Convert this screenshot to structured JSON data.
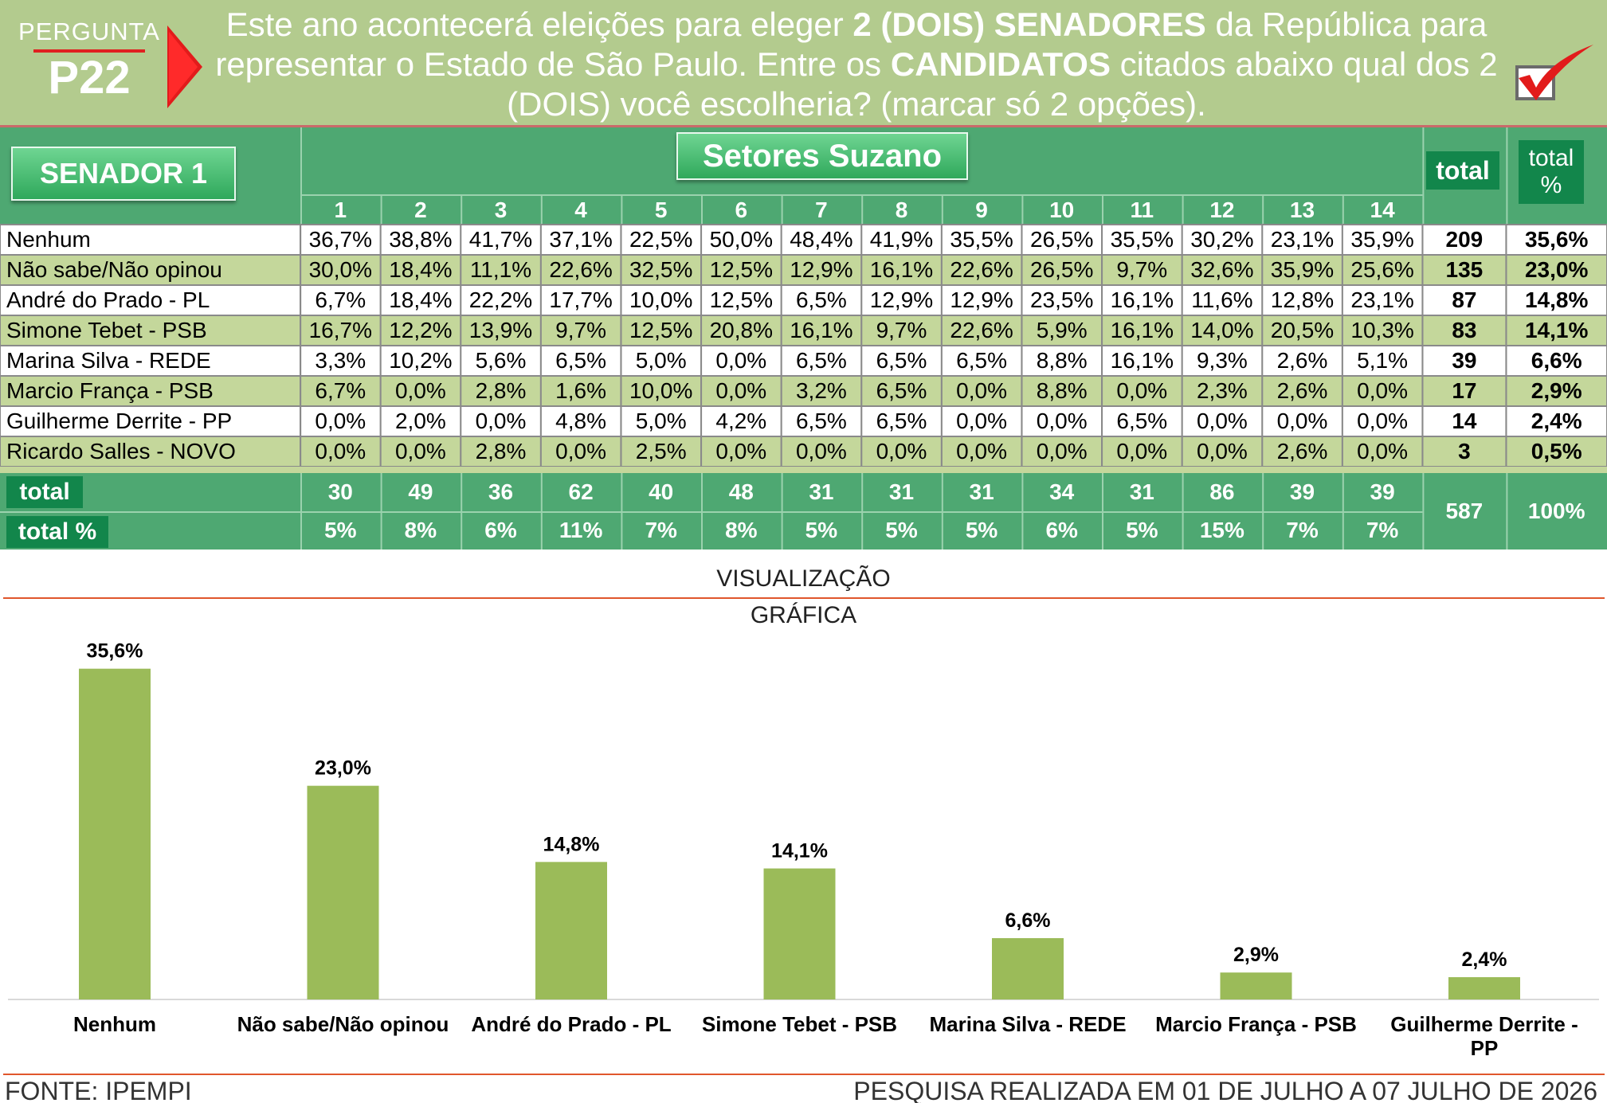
{
  "header": {
    "question_word": "PERGUNTA",
    "question_code": "P22",
    "question_parts": [
      {
        "t": "Este ano acontecerá eleições para eleger ",
        "b": false
      },
      {
        "t": "2 (DOIS) SENADORES",
        "b": true
      },
      {
        "t": " da República para representar o Estado de São Paulo. Entre os ",
        "b": false
      },
      {
        "t": "CANDIDATOS",
        "b": true
      },
      {
        "t": " citados abaixo qual dos 2 (DOIS) você escolheria? (marcar só 2 opções).",
        "b": false
      }
    ]
  },
  "table": {
    "label": "SENADOR 1",
    "group_title": "Setores Suzano",
    "total_label": "total",
    "total_pct_label": "total %",
    "columns": [
      "1",
      "2",
      "3",
      "4",
      "5",
      "6",
      "7",
      "8",
      "9",
      "10",
      "11",
      "12",
      "13",
      "14"
    ],
    "rows": [
      {
        "name": "Nenhum",
        "values": [
          "36,7%",
          "38,8%",
          "41,7%",
          "37,1%",
          "22,5%",
          "50,0%",
          "48,4%",
          "41,9%",
          "35,5%",
          "26,5%",
          "35,5%",
          "30,2%",
          "23,1%",
          "35,9%"
        ],
        "total": "209",
        "pct": "35,6%"
      },
      {
        "name": "Não sabe/Não opinou",
        "values": [
          "30,0%",
          "18,4%",
          "11,1%",
          "22,6%",
          "32,5%",
          "12,5%",
          "12,9%",
          "16,1%",
          "22,6%",
          "26,5%",
          "9,7%",
          "32,6%",
          "35,9%",
          "25,6%"
        ],
        "total": "135",
        "pct": "23,0%"
      },
      {
        "name": "André do Prado - PL",
        "values": [
          "6,7%",
          "18,4%",
          "22,2%",
          "17,7%",
          "10,0%",
          "12,5%",
          "6,5%",
          "12,9%",
          "12,9%",
          "23,5%",
          "16,1%",
          "11,6%",
          "12,8%",
          "23,1%"
        ],
        "total": "87",
        "pct": "14,8%"
      },
      {
        "name": "Simone Tebet - PSB",
        "values": [
          "16,7%",
          "12,2%",
          "13,9%",
          "9,7%",
          "12,5%",
          "20,8%",
          "16,1%",
          "9,7%",
          "22,6%",
          "5,9%",
          "16,1%",
          "14,0%",
          "20,5%",
          "10,3%"
        ],
        "total": "83",
        "pct": "14,1%"
      },
      {
        "name": "Marina Silva - REDE",
        "values": [
          "3,3%",
          "10,2%",
          "5,6%",
          "6,5%",
          "5,0%",
          "0,0%",
          "6,5%",
          "6,5%",
          "6,5%",
          "8,8%",
          "16,1%",
          "9,3%",
          "2,6%",
          "5,1%"
        ],
        "total": "39",
        "pct": "6,6%"
      },
      {
        "name": "Marcio França - PSB",
        "values": [
          "6,7%",
          "0,0%",
          "2,8%",
          "1,6%",
          "10,0%",
          "0,0%",
          "3,2%",
          "6,5%",
          "0,0%",
          "8,8%",
          "0,0%",
          "2,3%",
          "2,6%",
          "0,0%"
        ],
        "total": "17",
        "pct": "2,9%"
      },
      {
        "name": "Guilherme Derrite - PP",
        "values": [
          "0,0%",
          "2,0%",
          "0,0%",
          "4,8%",
          "5,0%",
          "4,2%",
          "6,5%",
          "6,5%",
          "0,0%",
          "0,0%",
          "6,5%",
          "0,0%",
          "0,0%",
          "0,0%"
        ],
        "total": "14",
        "pct": "2,4%"
      },
      {
        "name": "Ricardo Salles - NOVO",
        "values": [
          "0,0%",
          "0,0%",
          "2,8%",
          "0,0%",
          "2,5%",
          "0,0%",
          "0,0%",
          "0,0%",
          "0,0%",
          "0,0%",
          "0,0%",
          "0,0%",
          "2,6%",
          "0,0%"
        ],
        "total": "3",
        "pct": "0,5%"
      }
    ],
    "footer_total_label": "total",
    "footer_pct_label": "total %",
    "footer_totals": [
      "30",
      "49",
      "36",
      "62",
      "40",
      "48",
      "31",
      "31",
      "31",
      "34",
      "31",
      "86",
      "39",
      "39"
    ],
    "footer_pcts": [
      "5%",
      "8%",
      "6%",
      "11%",
      "7%",
      "8%",
      "5%",
      "5%",
      "5%",
      "6%",
      "5%",
      "15%",
      "7%",
      "7%"
    ],
    "grand_total": "587",
    "grand_pct": "100%"
  },
  "visual": {
    "title_line1": "VISUALIZAÇÃO",
    "title_line2": "GRÁFICA"
  },
  "chart_data": {
    "type": "bar",
    "categories": [
      "Nenhum",
      "Não sabe/Não opinou",
      "André do Prado - PL",
      "Simone Tebet - PSB",
      "Marina Silva - REDE",
      "Marcio França - PSB",
      "Guilherme Derrite - PP"
    ],
    "values": [
      35.6,
      23.0,
      14.8,
      14.1,
      6.6,
      2.9,
      2.4
    ],
    "value_labels": [
      "35,6%",
      "23,0%",
      "14,8%",
      "14,1%",
      "6,6%",
      "2,9%",
      "2,4%"
    ],
    "bar_color": "#9bbb59",
    "ylim": [
      0,
      36
    ],
    "grid": false,
    "legend": "none"
  },
  "footer": {
    "source": "FONTE: IPEMPI",
    "period": "PESQUISA REALIZADA EM 01 DE JULHO A 07 JULHO DE 2026"
  },
  "colors": {
    "header_bg": "#b3cb8e",
    "table_green": "#4ea872",
    "row_alt": "#c4d79b",
    "accent_red": "#e21b1b"
  }
}
